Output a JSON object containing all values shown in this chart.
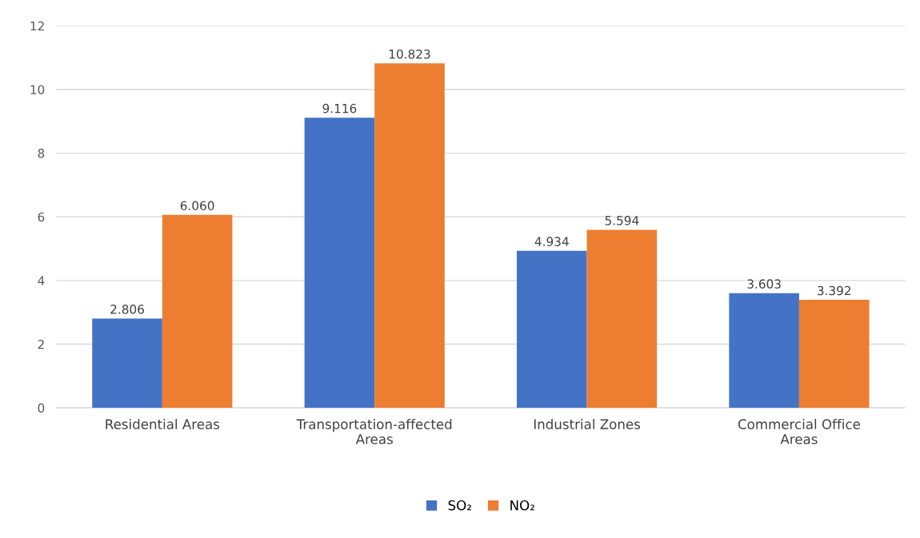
{
  "chart_data": {
    "type": "bar",
    "categories": [
      "Residential Areas",
      "Transportation-affected\nAreas",
      "Industrial Zones",
      "Commercial Office\nAreas"
    ],
    "series": [
      {
        "name": "SO₂",
        "color": "#4472c4",
        "values": [
          2.806,
          9.116,
          4.934,
          3.603
        ],
        "value_labels": [
          "2.806",
          "9.116",
          "4.934",
          "3.603"
        ]
      },
      {
        "name": "NO₂",
        "color": "#ed7d31",
        "values": [
          6.06,
          10.823,
          5.594,
          3.392
        ],
        "value_labels": [
          "6.060",
          "10.823",
          "5.594",
          "3.392"
        ]
      }
    ],
    "ylim": [
      0,
      12
    ],
    "yticks": [
      0,
      2,
      4,
      6,
      8,
      10,
      12
    ],
    "grid": "y",
    "legend": "bottom"
  }
}
